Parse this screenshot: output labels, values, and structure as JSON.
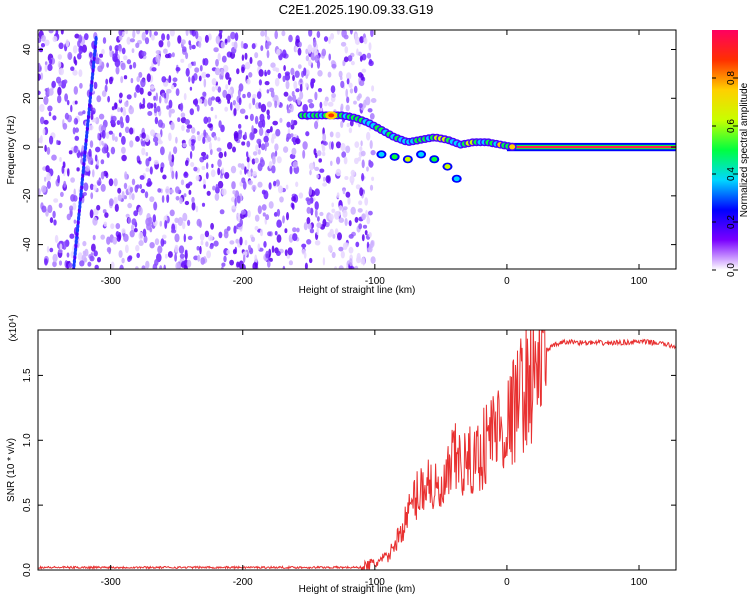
{
  "title": "C2E1.2025.190.09.33.G19",
  "chart_data": [
    {
      "type": "heatmap",
      "xlabel": "Height of straight line (km)",
      "ylabel": "Frequency (Hz)",
      "xlim": [
        -355,
        128
      ],
      "ylim": [
        -50,
        48
      ],
      "xticks": [
        -300,
        -200,
        -100,
        0,
        100
      ],
      "yticks": [
        -40,
        -20,
        0,
        20,
        40
      ],
      "colorbar": {
        "label": "Normalized spectral amplitude",
        "range": [
          0,
          1
        ],
        "ticks": [
          "0.0",
          "0.2",
          "0.4",
          "0.6",
          "0.8"
        ],
        "colors": [
          "#ffffff",
          "#7a00ff",
          "#0000ff",
          "#00d8ff",
          "#00ff40",
          "#c8ff00",
          "#ffd000",
          "#ff3000",
          "#ff0060"
        ]
      },
      "ridge": {
        "x": [
          -155,
          -145,
          -135,
          -125,
          -115,
          -105,
          -95,
          -85,
          -75,
          -65,
          -55,
          -45,
          -35,
          -25,
          -15,
          -5,
          5,
          20,
          50,
          80,
          110,
          128
        ],
        "y": [
          13,
          13,
          13,
          13,
          12,
          10,
          7,
          4,
          2,
          3,
          4,
          3,
          1,
          2,
          2,
          1,
          0,
          0,
          0,
          0,
          0,
          0
        ]
      },
      "noise_region_x": [
        -355,
        -100
      ]
    },
    {
      "type": "line",
      "xlabel": "Height of straight line (km)",
      "ylabel": "SNR (10 * v/v)",
      "y_multiplier": "(x10⁴)",
      "xlim": [
        -355,
        128
      ],
      "ylim": [
        0,
        1.85
      ],
      "xticks": [
        -300,
        -200,
        -100,
        0,
        100
      ],
      "yticks": [
        "0.0",
        "0.5",
        "1.0",
        "1.5"
      ],
      "series": [
        {
          "color": "#e83030",
          "x": [
            -355,
            -300,
            -250,
            -200,
            -150,
            -110,
            -100,
            -90,
            -80,
            -70,
            -60,
            -50,
            -40,
            -30,
            -20,
            -10,
            0,
            10,
            20,
            30,
            40,
            50,
            60,
            80,
            100,
            115,
            128
          ],
          "y": [
            0.02,
            0.02,
            0.02,
            0.02,
            0.02,
            0.02,
            0.05,
            0.1,
            0.3,
            0.55,
            0.7,
            0.55,
            0.85,
            0.8,
            0.9,
            1.1,
            1.1,
            1.35,
            1.5,
            1.7,
            1.75,
            1.76,
            1.75,
            1.75,
            1.76,
            1.75,
            1.72
          ]
        }
      ]
    }
  ]
}
